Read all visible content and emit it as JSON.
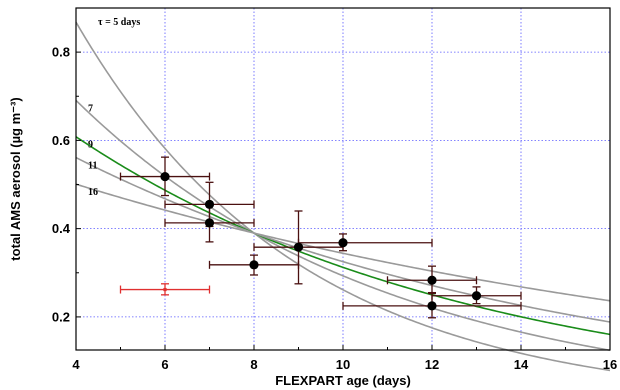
{
  "chart_data": {
    "type": "scatter",
    "xlabel": "FLEXPART age (days)",
    "ylabel": "total AMS aerosol (µg m⁻³)",
    "xlim": [
      4,
      16
    ],
    "ylim": [
      0.125,
      0.9
    ],
    "xticks": [
      "4",
      "6",
      "8",
      "10",
      "12",
      "14",
      "16"
    ],
    "yticks": [
      "0.2",
      "0.4",
      "0.6",
      "0.8"
    ],
    "grid": true,
    "curves": [
      {
        "label": "τ = 5 days",
        "tau": 5,
        "color": "#9a9a9a"
      },
      {
        "label": "7",
        "tau": 7,
        "color": "#9a9a9a"
      },
      {
        "label": "9",
        "tau": 9,
        "color": "#1a8c1a"
      },
      {
        "label": "11",
        "tau": 11,
        "color": "#9a9a9a"
      },
      {
        "label": "16",
        "tau": 16,
        "color": "#9a9a9a"
      }
    ],
    "curve_anchor": {
      "x": 8,
      "y": 0.39
    },
    "series": [
      {
        "color": "#000000",
        "errorbar_color": "#4a1010",
        "points": [
          {
            "x": 6,
            "y": 0.518,
            "xerr": [
              5,
              7
            ],
            "yerr": [
              0.475,
              0.562
            ]
          },
          {
            "x": 7,
            "y": 0.455,
            "xerr": [
              6,
              8
            ],
            "yerr": [
              0.405,
              0.505
            ]
          },
          {
            "x": 7,
            "y": 0.413,
            "xerr": [
              6,
              8
            ],
            "yerr": [
              0.37,
              0.455
            ]
          },
          {
            "x": 8,
            "y": 0.318,
            "xerr": [
              7,
              9
            ],
            "yerr": [
              0.295,
              0.34
            ]
          },
          {
            "x": 9,
            "y": 0.358,
            "xerr": [
              8,
              10
            ],
            "yerr": [
              0.275,
              0.44
            ]
          },
          {
            "x": 10,
            "y": 0.368,
            "xerr": [
              9,
              12
            ],
            "yerr": [
              0.35,
              0.388
            ]
          },
          {
            "x": 12,
            "y": 0.283,
            "xerr": [
              11,
              13
            ],
            "yerr": [
              0.255,
              0.315
            ]
          },
          {
            "x": 12,
            "y": 0.225,
            "xerr": [
              10,
              14
            ],
            "yerr": [
              0.198,
              0.253
            ]
          },
          {
            "x": 13,
            "y": 0.248,
            "xerr": [
              12,
              14
            ],
            "yerr": [
              0.23,
              0.268
            ]
          }
        ]
      },
      {
        "color": "#e03030",
        "errorbar_color": "#e03030",
        "points": [
          {
            "x": 6,
            "y": 0.262,
            "xerr": [
              5,
              7
            ],
            "yerr": [
              0.25,
              0.275
            ]
          }
        ]
      }
    ]
  }
}
